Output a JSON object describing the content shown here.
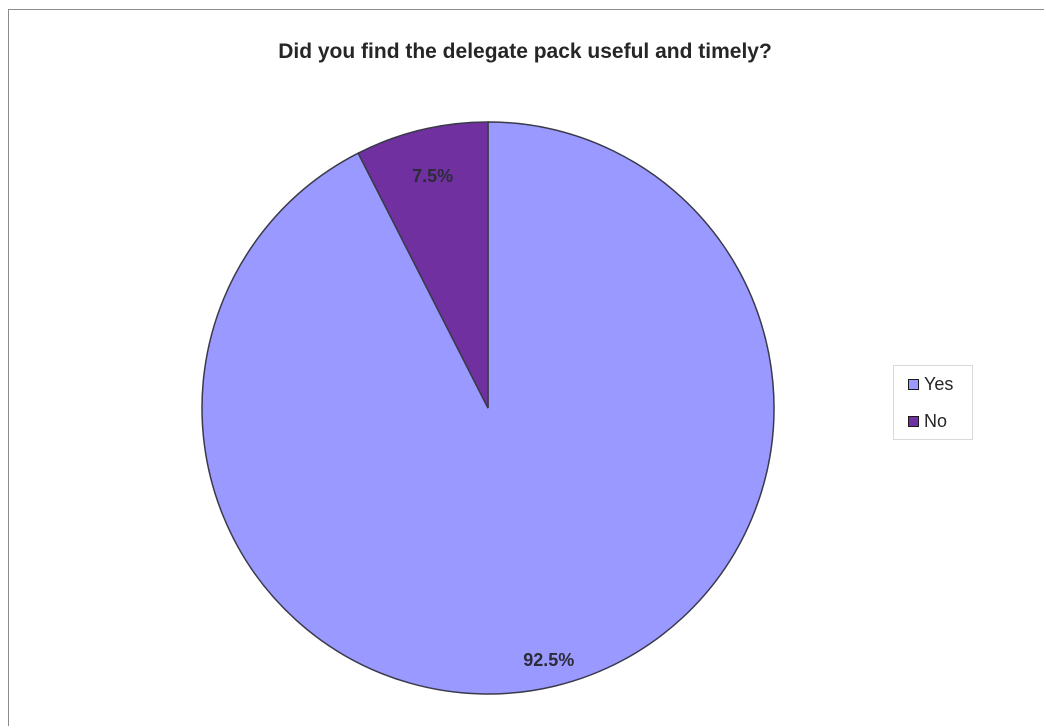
{
  "chart_data": {
    "type": "pie",
    "title": "Did you find the delegate pack useful and timely?",
    "categories": [
      "Yes",
      "No"
    ],
    "values": [
      92.5,
      7.5
    ],
    "data_labels": [
      "92.5%",
      "7.5%"
    ],
    "colors": [
      "#9999ff",
      "#7030a0"
    ],
    "start_angle_deg": 0,
    "direction": "clockwise",
    "legend_position": "right"
  }
}
